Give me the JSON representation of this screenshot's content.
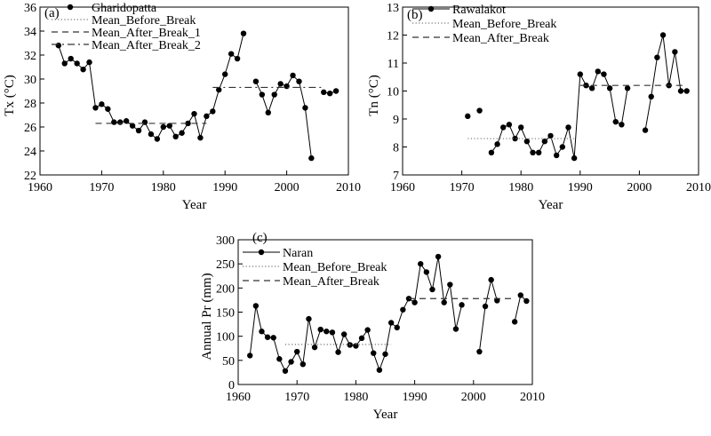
{
  "chart_data": [
    {
      "id": "a",
      "type": "line",
      "panel_label": "(a)",
      "xlabel": "Year",
      "ylabel": "Tx (°C)",
      "xlim": [
        1960,
        2010
      ],
      "ylim": [
        22,
        36
      ],
      "xticks": [
        1960,
        1970,
        1980,
        1990,
        2000,
        2010
      ],
      "yticks": [
        22,
        24,
        26,
        28,
        30,
        32,
        34,
        36
      ],
      "legend": "top-left",
      "series": [
        {
          "name": "Gharidopatta",
          "style": "line-dots",
          "segments": [
            {
              "x": [
                1963,
                1964,
                1965,
                1966,
                1967,
                1968,
                1969,
                1970,
                1971,
                1972,
                1973,
                1974,
                1975,
                1976,
                1977,
                1978,
                1979,
                1980,
                1981,
                1982,
                1983,
                1984,
                1985,
                1986,
                1987,
                1988,
                1989,
                1990,
                1991,
                1992,
                1993
              ],
              "y": [
                32.8,
                31.3,
                31.7,
                31.3,
                30.8,
                31.4,
                27.6,
                27.9,
                27.5,
                26.4,
                26.4,
                26.5,
                26.1,
                25.7,
                26.4,
                25.4,
                25.0,
                26.0,
                26.1,
                25.2,
                25.5,
                26.3,
                27.1,
                25.1,
                26.9,
                27.3,
                29.1,
                30.4,
                32.1,
                31.7,
                33.8
              ]
            },
            {
              "x": [
                1995,
                1996,
                1997,
                1998,
                1999,
                2000,
                2001,
                2002,
                2003,
                2004
              ],
              "y": [
                29.8,
                28.7,
                27.2,
                28.7,
                29.6,
                29.4,
                30.3,
                29.8,
                27.6,
                23.4
              ]
            },
            {
              "x": [
                2006,
                2007,
                2008
              ],
              "y": [
                28.9,
                28.8,
                29.0
              ]
            }
          ]
        },
        {
          "name": "Mean_Before_Break",
          "style": "dotted",
          "x": [
            1968,
            1968
          ],
          "y": [
            31.4,
            31.4
          ]
        },
        {
          "name": "Mean_After_Break_1",
          "style": "dashed",
          "x": [
            1969,
            1987
          ],
          "y": [
            26.3,
            26.3
          ]
        },
        {
          "name": "Mean_After_Break_2",
          "style": "dashdot",
          "x": [
            1988,
            2006
          ],
          "y": [
            29.3,
            29.3
          ]
        }
      ]
    },
    {
      "id": "b",
      "type": "line",
      "panel_label": "(b)",
      "xlabel": "Year",
      "ylabel": "Tn (°C)",
      "xlim": [
        1960,
        2010
      ],
      "ylim": [
        7,
        13
      ],
      "xticks": [
        1960,
        1970,
        1980,
        1990,
        2000,
        2010
      ],
      "yticks": [
        7,
        8,
        9,
        10,
        11,
        12,
        13
      ],
      "legend": "top-left",
      "series": [
        {
          "name": "Rawalakot",
          "style": "line-dots",
          "segments": [
            {
              "x": [
                1971
              ],
              "y": [
                9.1
              ]
            },
            {
              "x": [
                1973
              ],
              "y": [
                9.3
              ]
            },
            {
              "x": [
                1975,
                1976,
                1977,
                1978,
                1979,
                1980,
                1981,
                1982,
                1983,
                1984,
                1985,
                1986,
                1987,
                1988,
                1989,
                1990,
                1991,
                1992,
                1993,
                1994,
                1995,
                1996,
                1997,
                1998
              ],
              "y": [
                7.8,
                8.1,
                8.7,
                8.8,
                8.3,
                8.7,
                8.2,
                7.8,
                7.8,
                8.2,
                8.4,
                7.7,
                8.0,
                8.7,
                7.6,
                10.6,
                10.2,
                10.1,
                10.7,
                10.6,
                10.1,
                8.9,
                8.8,
                10.1
              ]
            },
            {
              "x": [
                2001,
                2002,
                2003,
                2004,
                2005,
                2006,
                2007,
                2008
              ],
              "y": [
                8.6,
                9.8,
                11.2,
                12.0,
                10.2,
                11.4,
                10.0,
                10.0
              ]
            }
          ]
        },
        {
          "name": "Mean_Before_Break",
          "style": "dotted",
          "x": [
            1971,
            1989
          ],
          "y": [
            8.3,
            8.3
          ]
        },
        {
          "name": "Mean_After_Break",
          "style": "dashed",
          "x": [
            1990,
            2008
          ],
          "y": [
            10.2,
            10.2
          ]
        }
      ]
    },
    {
      "id": "c",
      "type": "line",
      "panel_label": "(c)",
      "xlabel": "Year",
      "ylabel": "Annual Pr (mm)",
      "xlim": [
        1960,
        2010
      ],
      "ylim": [
        0,
        300
      ],
      "xticks": [
        1960,
        1970,
        1980,
        1990,
        2000,
        2010
      ],
      "yticks": [
        0,
        50,
        100,
        150,
        200,
        250,
        300
      ],
      "legend": "top-left",
      "series": [
        {
          "name": "Naran",
          "style": "line-dots",
          "segments": [
            {
              "x": [
                1962,
                1963,
                1964,
                1965,
                1966,
                1967,
                1968,
                1969,
                1970,
                1971,
                1972,
                1973,
                1974,
                1975,
                1976,
                1977,
                1978,
                1979,
                1980,
                1981,
                1982,
                1983,
                1984,
                1985,
                1986,
                1987,
                1988,
                1989,
                1990,
                1991,
                1992,
                1993,
                1994,
                1995,
                1996,
                1997,
                1998
              ],
              "y": [
                60,
                163,
                110,
                98,
                97,
                53,
                28,
                47,
                68,
                42,
                136,
                77,
                114,
                110,
                108,
                67,
                104,
                82,
                80,
                96,
                113,
                65,
                30,
                63,
                128,
                118,
                155,
                178,
                170,
                250,
                233,
                197,
                265,
                170,
                207,
                115,
                165
              ]
            },
            {
              "x": [
                2001,
                2002,
                2003,
                2004
              ],
              "y": [
                68,
                162,
                217,
                174
              ]
            },
            {
              "x": [
                2007,
                2008,
                2009
              ],
              "y": [
                130,
                185,
                173
              ]
            }
          ]
        },
        {
          "name": "Mean_Before_Break",
          "style": "dotted",
          "x": [
            1968,
            1986
          ],
          "y": [
            83,
            83
          ]
        },
        {
          "name": "Mean_After_Break",
          "style": "dashed",
          "x": [
            1989,
            2007
          ],
          "y": [
            178,
            178
          ]
        }
      ]
    }
  ]
}
